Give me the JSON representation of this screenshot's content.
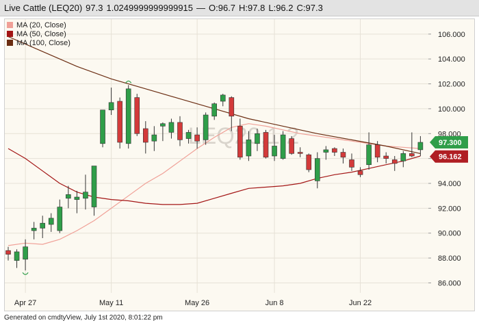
{
  "header": {
    "title": "Live Cattle (LEQ20)",
    "last": "97.3",
    "change": "1.0249999999999915",
    "separator": "—",
    "open": "O:96.7",
    "high": "H:97.8",
    "low": "L:96.2",
    "close": "C:97.3"
  },
  "footer": {
    "text": "Generated on cmdtyView, July 1st 2020, 8:01:22 pm"
  },
  "watermark": "LEQ20,1,2",
  "colors": {
    "up": "#2f9e49",
    "down": "#d33a3a",
    "ma20": "#f0a097",
    "ma50": "#a31515",
    "ma100": "#6b2d12",
    "last_tag": "#2f9e49",
    "ma_tag": "#b01e23"
  },
  "chart_data": {
    "type": "candlestick",
    "title": "Live Cattle (LEQ20)",
    "ylim": [
      85.2,
      107.2
    ],
    "y_ticks": [
      86,
      88,
      90,
      92,
      94,
      96,
      98,
      100,
      102,
      104,
      106
    ],
    "y_tick_labels": [
      "86.000",
      "88.000",
      "90.000",
      "92.000",
      "94.000",
      "96.000",
      "98.000",
      "100.000",
      "102.000",
      "104.000",
      "106.000"
    ],
    "x_ticks": [
      {
        "label": "Apr 27",
        "index": 2
      },
      {
        "label": "May 11",
        "index": 12
      },
      {
        "label": "May 26",
        "index": 22
      },
      {
        "label": "Jun 8",
        "index": 31
      },
      {
        "label": "Jun 22",
        "index": 41
      }
    ],
    "legend": [
      {
        "name": "MA (20, Close)",
        "color": "#f0a097"
      },
      {
        "name": "MA (50, Close)",
        "color": "#a31515"
      },
      {
        "name": "MA (100, Close)",
        "color": "#6b2d12"
      }
    ],
    "candles": [
      {
        "o": 88.6,
        "h": 88.9,
        "l": 87.8,
        "c": 88.3
      },
      {
        "o": 87.8,
        "h": 88.7,
        "l": 87.2,
        "c": 88.5
      },
      {
        "o": 87.9,
        "h": 89.5,
        "l": 87.0,
        "c": 88.9
      },
      {
        "o": 90.2,
        "h": 90.9,
        "l": 89.5,
        "c": 90.4
      },
      {
        "o": 90.4,
        "h": 91.4,
        "l": 89.6,
        "c": 90.8
      },
      {
        "o": 90.7,
        "h": 91.6,
        "l": 90.1,
        "c": 91.2
      },
      {
        "o": 90.2,
        "h": 92.7,
        "l": 90.0,
        "c": 92.1
      },
      {
        "o": 92.8,
        "h": 93.8,
        "l": 92.0,
        "c": 93.1
      },
      {
        "o": 92.7,
        "h": 93.4,
        "l": 91.6,
        "c": 92.9
      },
      {
        "o": 92.8,
        "h": 94.7,
        "l": 91.9,
        "c": 93.3
      },
      {
        "o": 92.1,
        "h": 95.4,
        "l": 91.4,
        "c": 95.4
      },
      {
        "o": 97.2,
        "h": 99.9,
        "l": 96.9,
        "c": 99.9
      },
      {
        "o": 99.9,
        "h": 101.7,
        "l": 99.5,
        "c": 100.5
      },
      {
        "o": 100.6,
        "h": 100.9,
        "l": 96.8,
        "c": 97.3
      },
      {
        "o": 97.2,
        "h": 101.9,
        "l": 96.8,
        "c": 101.6
      },
      {
        "o": 100.9,
        "h": 101.2,
        "l": 97.8,
        "c": 98.0
      },
      {
        "o": 98.4,
        "h": 99.0,
        "l": 96.4,
        "c": 97.3
      },
      {
        "o": 97.4,
        "h": 98.6,
        "l": 96.6,
        "c": 97.9
      },
      {
        "o": 98.6,
        "h": 98.9,
        "l": 97.4,
        "c": 98.8
      },
      {
        "o": 98.1,
        "h": 99.2,
        "l": 97.6,
        "c": 98.9
      },
      {
        "o": 98.9,
        "h": 99.4,
        "l": 97.0,
        "c": 97.5
      },
      {
        "o": 97.6,
        "h": 98.3,
        "l": 97.2,
        "c": 98.1
      },
      {
        "o": 97.9,
        "h": 98.5,
        "l": 96.8,
        "c": 97.4
      },
      {
        "o": 97.5,
        "h": 99.7,
        "l": 97.1,
        "c": 99.5
      },
      {
        "o": 99.4,
        "h": 100.5,
        "l": 99.1,
        "c": 100.4
      },
      {
        "o": 100.6,
        "h": 101.2,
        "l": 100.2,
        "c": 101.1
      },
      {
        "o": 100.9,
        "h": 101.0,
        "l": 98.2,
        "c": 99.4
      },
      {
        "o": 98.6,
        "h": 99.2,
        "l": 95.9,
        "c": 96.1
      },
      {
        "o": 96.2,
        "h": 98.2,
        "l": 95.8,
        "c": 97.5
      },
      {
        "o": 97.2,
        "h": 98.4,
        "l": 96.6,
        "c": 98.0
      },
      {
        "o": 98.1,
        "h": 98.3,
        "l": 96.0,
        "c": 96.1
      },
      {
        "o": 96.2,
        "h": 97.9,
        "l": 95.8,
        "c": 97.0
      },
      {
        "o": 96.0,
        "h": 98.2,
        "l": 95.9,
        "c": 97.9
      },
      {
        "o": 97.6,
        "h": 97.8,
        "l": 96.3,
        "c": 96.4
      },
      {
        "o": 96.5,
        "h": 96.9,
        "l": 96.1,
        "c": 96.4
      },
      {
        "o": 96.3,
        "h": 96.4,
        "l": 94.9,
        "c": 95.1
      },
      {
        "o": 94.2,
        "h": 96.5,
        "l": 93.6,
        "c": 96.0
      },
      {
        "o": 96.5,
        "h": 97.0,
        "l": 95.9,
        "c": 96.7
      },
      {
        "o": 96.8,
        "h": 96.9,
        "l": 96.2,
        "c": 96.5
      },
      {
        "o": 96.5,
        "h": 96.8,
        "l": 95.6,
        "c": 96.1
      },
      {
        "o": 95.9,
        "h": 96.4,
        "l": 95.0,
        "c": 95.3
      },
      {
        "o": 95.0,
        "h": 95.3,
        "l": 94.5,
        "c": 94.7
      },
      {
        "o": 95.5,
        "h": 98.1,
        "l": 95.1,
        "c": 97.1
      },
      {
        "o": 97.1,
        "h": 97.4,
        "l": 95.7,
        "c": 96.1
      },
      {
        "o": 96.2,
        "h": 96.5,
        "l": 95.6,
        "c": 96.0
      },
      {
        "o": 95.9,
        "h": 96.2,
        "l": 95.0,
        "c": 95.6
      },
      {
        "o": 95.8,
        "h": 96.6,
        "l": 95.3,
        "c": 96.4
      },
      {
        "o": 96.4,
        "h": 98.1,
        "l": 96.1,
        "c": 96.2
      },
      {
        "o": 96.7,
        "h": 97.8,
        "l": 96.2,
        "c": 97.3
      }
    ],
    "ma20": [
      [
        0,
        89.0
      ],
      [
        2,
        89.2
      ],
      [
        4,
        89.1
      ],
      [
        6,
        89.5
      ],
      [
        8,
        90.2
      ],
      [
        10,
        91.0
      ],
      [
        12,
        92.0
      ],
      [
        14,
        93.0
      ],
      [
        16,
        94.0
      ],
      [
        18,
        94.8
      ],
      [
        20,
        95.8
      ],
      [
        22,
        96.8
      ],
      [
        24,
        97.7
      ],
      [
        26,
        98.5
      ],
      [
        28,
        98.8
      ],
      [
        30,
        98.6
      ],
      [
        32,
        98.3
      ],
      [
        34,
        98.0
      ],
      [
        36,
        97.8
      ],
      [
        38,
        97.6
      ],
      [
        40,
        97.4
      ],
      [
        42,
        97.2
      ],
      [
        44,
        97.0
      ],
      [
        46,
        96.9
      ],
      [
        48,
        96.8
      ]
    ],
    "ma50": [
      [
        0,
        96.8
      ],
      [
        2,
        96.0
      ],
      [
        4,
        95.0
      ],
      [
        6,
        94.0
      ],
      [
        8,
        93.3
      ],
      [
        10,
        92.9
      ],
      [
        12,
        92.7
      ],
      [
        14,
        92.6
      ],
      [
        16,
        92.4
      ],
      [
        18,
        92.3
      ],
      [
        20,
        92.3
      ],
      [
        22,
        92.4
      ],
      [
        24,
        92.8
      ],
      [
        26,
        93.2
      ],
      [
        28,
        93.6
      ],
      [
        30,
        93.7
      ],
      [
        32,
        93.8
      ],
      [
        34,
        94.0
      ],
      [
        36,
        94.4
      ],
      [
        38,
        94.7
      ],
      [
        40,
        94.9
      ],
      [
        42,
        95.2
      ],
      [
        44,
        95.5
      ],
      [
        46,
        95.8
      ],
      [
        48,
        96.2
      ]
    ],
    "ma100": [
      [
        0,
        105.8
      ],
      [
        4,
        104.6
      ],
      [
        8,
        103.4
      ],
      [
        12,
        102.4
      ],
      [
        16,
        101.6
      ],
      [
        20,
        100.8
      ],
      [
        24,
        100.0
      ],
      [
        28,
        99.2
      ],
      [
        32,
        98.6
      ],
      [
        36,
        98.0
      ],
      [
        40,
        97.5
      ],
      [
        44,
        97.0
      ],
      [
        48,
        96.4
      ]
    ],
    "last_value_tag": {
      "value": 97.3,
      "label": "97.300"
    },
    "ma_value_tag": {
      "value": 96.162,
      "label": "96.162"
    }
  }
}
